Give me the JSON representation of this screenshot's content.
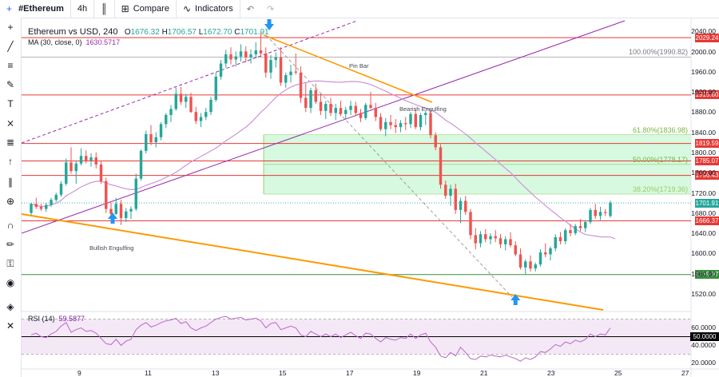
{
  "toolbar": {
    "symbol": "#Ethereum",
    "interval": "4h",
    "compare": "Compare",
    "indicators": "Indicators",
    "undo": "↶",
    "redo": "↷"
  },
  "legend": {
    "title": "Ethereum vs USD, 240",
    "open_label": "O",
    "open": "1676.32",
    "high_label": "H",
    "high": "1706.57",
    "low_label": "L",
    "low": "1672.70",
    "close_label": "C",
    "close": "1701.91",
    "ma_label": "MA (30, close, 0)",
    "ma_value": "1630.5717"
  },
  "rsi_legend": {
    "label": "RSI (14)",
    "value": "59.5877"
  },
  "annotations": {
    "pin_bar": "Pin Bar",
    "bearish_engulfing": "Bearish Engulfing",
    "bullish_engulfing": "Bullish Engulfing"
  },
  "colors": {
    "up": "#26a69a",
    "down": "#ef5350",
    "resistance": "#e53935",
    "support": "#388e3c",
    "trend": "#ff9800",
    "channel": "#9c27b0",
    "ma": "#ce93d8",
    "fib_zone": "#c8f7d4",
    "arrow": "#2196f3"
  },
  "chart_data": {
    "type": "candlestick",
    "title": "Ethereum vs USD, 240",
    "y_range": [
      1490,
      2050
    ],
    "y_ticks": [
      2040,
      2000,
      1960,
      1920,
      1880,
      1840,
      1800,
      1760,
      1720,
      1680,
      1640,
      1600,
      1560,
      1520
    ],
    "x_ticks": [
      "9",
      "11",
      "13",
      "15",
      "17",
      "19",
      "21",
      "23",
      "25",
      "27"
    ],
    "levels": [
      {
        "price": 2029.24,
        "label": "2029.24",
        "kind": "resistance"
      },
      {
        "price": 1915.8,
        "label": "1915.80",
        "kind": "resistance"
      },
      {
        "price": 1819.59,
        "label": "1819.59",
        "kind": "resistance"
      },
      {
        "price": 1785.07,
        "label": "1785.07",
        "kind": "resistance"
      },
      {
        "price": 1756.43,
        "label": "1756.43",
        "kind": "resistance"
      },
      {
        "price": 1666.37,
        "label": "1666.37",
        "kind": "resistance"
      },
      {
        "price": 1559.97,
        "label": "1559.97",
        "kind": "support"
      }
    ],
    "current_price": {
      "price": 1701.91,
      "label": "1701.91"
    },
    "fibonacci": [
      {
        "price": 1990.82,
        "label": "100.00%(1990.82)"
      },
      {
        "price": 1836.98,
        "label": "61.80%(1836.98)"
      },
      {
        "price": 1778.17,
        "label": "50.00%(1778.17)"
      },
      {
        "price": 1719.36,
        "label": "38.20%(1719.36)"
      }
    ],
    "candles": [
      [
        1682,
        1702,
        1678,
        1700
      ],
      [
        1700,
        1712,
        1690,
        1694
      ],
      [
        1694,
        1700,
        1686,
        1690
      ],
      [
        1690,
        1702,
        1684,
        1698
      ],
      [
        1698,
        1712,
        1694,
        1708
      ],
      [
        1708,
        1722,
        1704,
        1718
      ],
      [
        1718,
        1745,
        1714,
        1740
      ],
      [
        1740,
        1790,
        1736,
        1782
      ],
      [
        1782,
        1812,
        1760,
        1765
      ],
      [
        1765,
        1785,
        1740,
        1780
      ],
      [
        1780,
        1810,
        1776,
        1795
      ],
      [
        1795,
        1806,
        1780,
        1786
      ],
      [
        1786,
        1800,
        1774,
        1792
      ],
      [
        1792,
        1802,
        1770,
        1778
      ],
      [
        1778,
        1784,
        1740,
        1745
      ],
      [
        1745,
        1752,
        1682,
        1690
      ],
      [
        1690,
        1702,
        1672,
        1680
      ],
      [
        1680,
        1712,
        1678,
        1700
      ],
      [
        1700,
        1708,
        1658,
        1672
      ],
      [
        1672,
        1692,
        1664,
        1685
      ],
      [
        1685,
        1695,
        1670,
        1690
      ],
      [
        1690,
        1760,
        1686,
        1750
      ],
      [
        1750,
        1808,
        1746,
        1805
      ],
      [
        1805,
        1845,
        1800,
        1838
      ],
      [
        1838,
        1856,
        1816,
        1822
      ],
      [
        1822,
        1842,
        1812,
        1832
      ],
      [
        1832,
        1862,
        1826,
        1858
      ],
      [
        1858,
        1880,
        1850,
        1876
      ],
      [
        1876,
        1896,
        1862,
        1888
      ],
      [
        1888,
        1930,
        1884,
        1918
      ],
      [
        1918,
        1932,
        1896,
        1902
      ],
      [
        1902,
        1918,
        1890,
        1912
      ],
      [
        1912,
        1920,
        1880,
        1882
      ],
      [
        1882,
        1892,
        1858,
        1864
      ],
      [
        1864,
        1880,
        1852,
        1872
      ],
      [
        1872,
        1890,
        1866,
        1882
      ],
      [
        1882,
        1912,
        1876,
        1906
      ],
      [
        1906,
        1960,
        1902,
        1952
      ],
      [
        1952,
        1985,
        1946,
        1978
      ],
      [
        1978,
        2005,
        1970,
        1996
      ],
      [
        1996,
        2010,
        1976,
        1986
      ],
      [
        1986,
        2002,
        1972,
        1992
      ],
      [
        1992,
        2016,
        1982,
        2002
      ],
      [
        2002,
        2012,
        1980,
        1990
      ],
      [
        1990,
        2006,
        1978,
        1996
      ],
      [
        1996,
        2020,
        1988,
        2004
      ],
      [
        2004,
        2040,
        1990,
        1998
      ],
      [
        1998,
        2010,
        1950,
        1960
      ],
      [
        1960,
        1995,
        1948,
        1985
      ],
      [
        1985,
        2000,
        1970,
        1990
      ],
      [
        1990,
        2010,
        1934,
        1940
      ],
      [
        1940,
        1960,
        1930,
        1955
      ],
      [
        1955,
        1975,
        1940,
        1962
      ],
      [
        1962,
        1998,
        1956,
        1960
      ],
      [
        1960,
        1972,
        1900,
        1910
      ],
      [
        1910,
        1940,
        1882,
        1890
      ],
      [
        1890,
        1930,
        1880,
        1925
      ],
      [
        1925,
        1938,
        1898,
        1902
      ],
      [
        1902,
        1918,
        1876,
        1884
      ],
      [
        1884,
        1904,
        1868,
        1898
      ],
      [
        1898,
        1910,
        1874,
        1880
      ],
      [
        1880,
        1898,
        1866,
        1890
      ],
      [
        1890,
        1904,
        1874,
        1878
      ],
      [
        1878,
        1892,
        1868,
        1886
      ],
      [
        1886,
        1904,
        1876,
        1894
      ],
      [
        1894,
        1902,
        1874,
        1880
      ],
      [
        1880,
        1888,
        1862,
        1870
      ],
      [
        1870,
        1900,
        1866,
        1896
      ],
      [
        1896,
        1922,
        1888,
        1890
      ],
      [
        1890,
        1900,
        1864,
        1872
      ],
      [
        1872,
        1880,
        1844,
        1848
      ],
      [
        1848,
        1870,
        1834,
        1862
      ],
      [
        1862,
        1876,
        1848,
        1856
      ],
      [
        1856,
        1868,
        1840,
        1852
      ],
      [
        1852,
        1866,
        1842,
        1860
      ],
      [
        1860,
        1872,
        1846,
        1858
      ],
      [
        1858,
        1882,
        1850,
        1878
      ],
      [
        1878,
        1888,
        1848,
        1852
      ],
      [
        1852,
        1880,
        1846,
        1876
      ],
      [
        1876,
        1884,
        1856,
        1880
      ],
      [
        1880,
        1884,
        1830,
        1836
      ],
      [
        1836,
        1842,
        1806,
        1812
      ],
      [
        1812,
        1818,
        1730,
        1738
      ],
      [
        1738,
        1746,
        1710,
        1716
      ],
      [
        1716,
        1738,
        1696,
        1730
      ],
      [
        1730,
        1740,
        1680,
        1688
      ],
      [
        1688,
        1712,
        1662,
        1706
      ],
      [
        1706,
        1716,
        1678,
        1684
      ],
      [
        1684,
        1690,
        1630,
        1638
      ],
      [
        1638,
        1652,
        1610,
        1622
      ],
      [
        1622,
        1646,
        1614,
        1640
      ],
      [
        1640,
        1650,
        1624,
        1630
      ],
      [
        1630,
        1642,
        1620,
        1636
      ],
      [
        1636,
        1648,
        1624,
        1632
      ],
      [
        1632,
        1640,
        1612,
        1620
      ],
      [
        1620,
        1636,
        1608,
        1630
      ],
      [
        1630,
        1644,
        1614,
        1618
      ],
      [
        1618,
        1626,
        1596,
        1600
      ],
      [
        1600,
        1612,
        1570,
        1574
      ],
      [
        1574,
        1590,
        1560,
        1586
      ],
      [
        1586,
        1598,
        1566,
        1572
      ],
      [
        1572,
        1584,
        1566,
        1580
      ],
      [
        1580,
        1610,
        1576,
        1604
      ],
      [
        1604,
        1622,
        1594,
        1600
      ],
      [
        1600,
        1616,
        1588,
        1612
      ],
      [
        1612,
        1640,
        1606,
        1634
      ],
      [
        1634,
        1644,
        1620,
        1626
      ],
      [
        1626,
        1652,
        1620,
        1648
      ],
      [
        1648,
        1660,
        1636,
        1642
      ],
      [
        1642,
        1660,
        1638,
        1656
      ],
      [
        1656,
        1670,
        1646,
        1652
      ],
      [
        1652,
        1668,
        1644,
        1664
      ],
      [
        1664,
        1692,
        1660,
        1688
      ],
      [
        1688,
        1700,
        1670,
        1676
      ],
      [
        1676,
        1694,
        1668,
        1684
      ],
      [
        1684,
        1690,
        1676,
        1682
      ],
      [
        1676,
        1706.57,
        1672.7,
        1701.91
      ]
    ],
    "ma": {
      "label": "MA (30, close, 0)",
      "last": 1630.5717
    },
    "rsi": {
      "label": "RSI (14)",
      "last": 59.5877,
      "y_range": [
        15,
        75
      ],
      "y_ticks": [
        60,
        40,
        20
      ],
      "middle_band": 50,
      "values": [
        52,
        54,
        50,
        49,
        53,
        56,
        62,
        66,
        55,
        58,
        60,
        56,
        57,
        54,
        48,
        42,
        41,
        47,
        40,
        45,
        47,
        58,
        63,
        66,
        61,
        63,
        66,
        68,
        69,
        71,
        65,
        67,
        60,
        57,
        60,
        62,
        66,
        70,
        72,
        73,
        70,
        71,
        72,
        69,
        70,
        71,
        68,
        60,
        65,
        66,
        58,
        60,
        62,
        60,
        52,
        50,
        56,
        53,
        50,
        53,
        50,
        53,
        49,
        52,
        55,
        51,
        48,
        54,
        53,
        48,
        44,
        49,
        47,
        46,
        49,
        48,
        53,
        48,
        52,
        54,
        44,
        38,
        28,
        26,
        32,
        28,
        38,
        32,
        25,
        24,
        28,
        27,
        29,
        28,
        27,
        29,
        27,
        25,
        22,
        26,
        24,
        27,
        33,
        32,
        36,
        41,
        39,
        44,
        42,
        46,
        44,
        47,
        53,
        50,
        53,
        52,
        60
      ]
    }
  }
}
